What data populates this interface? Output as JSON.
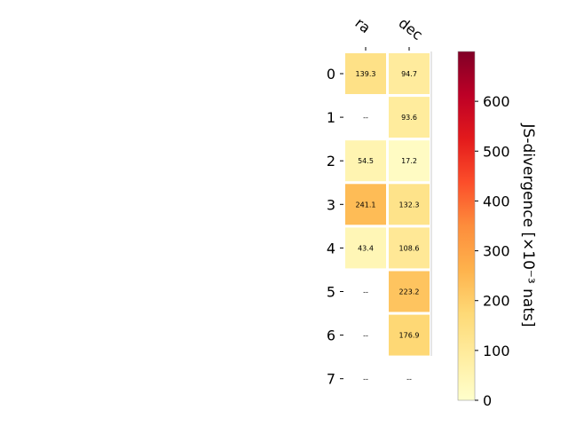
{
  "chart_data": {
    "type": "heatmap",
    "columns": [
      "ra",
      "dec"
    ],
    "rows": [
      "0",
      "1",
      "2",
      "3",
      "4",
      "5",
      "6",
      "7"
    ],
    "cells": [
      [
        {
          "value": 139.3,
          "label": "139.3"
        },
        {
          "value": 94.7,
          "label": "94.7"
        }
      ],
      [
        {
          "value": null,
          "label": "--"
        },
        {
          "value": 93.6,
          "label": "93.6"
        }
      ],
      [
        {
          "value": 54.5,
          "label": "54.5"
        },
        {
          "value": 17.2,
          "label": "17.2"
        }
      ],
      [
        {
          "value": 241.1,
          "label": "241.1"
        },
        {
          "value": 132.3,
          "label": "132.3"
        }
      ],
      [
        {
          "value": 43.4,
          "label": "43.4"
        },
        {
          "value": 108.6,
          "label": "108.6"
        }
      ],
      [
        {
          "value": null,
          "label": "--"
        },
        {
          "value": 223.2,
          "label": "223.2"
        }
      ],
      [
        {
          "value": null,
          "label": "--"
        },
        {
          "value": 176.9,
          "label": "176.9"
        }
      ],
      [
        {
          "value": null,
          "label": "--"
        },
        {
          "value": null,
          "label": "--"
        }
      ]
    ],
    "colorbar": {
      "label": "JS-divergence [×10⁻³ nats]",
      "range": [
        0,
        700
      ],
      "ticks": [
        "0",
        "100",
        "200",
        "300",
        "400",
        "500",
        "600"
      ],
      "colormap": "YlOrRd"
    },
    "text_color_threshold": 120
  }
}
